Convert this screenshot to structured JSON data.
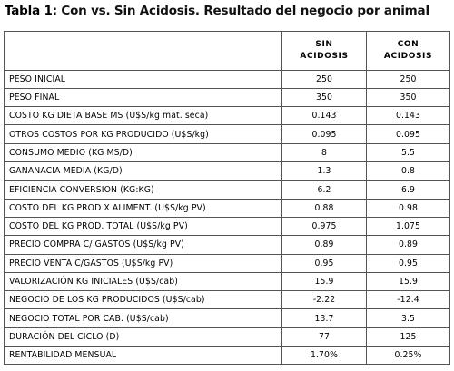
{
  "title": {
    "label": "Tabla 1:",
    "text": "Con vs. Sin Acidosis. Resultado del negocio por animal"
  },
  "table": {
    "headers": {
      "sin_line1": "SIN",
      "sin_line2": "ACIDOSIS",
      "con_line1": "CON",
      "con_line2": "ACIDOSIS"
    },
    "rows": [
      {
        "label": "PESO INICIAL",
        "sin": "250",
        "con": "250"
      },
      {
        "label": "PESO FINAL",
        "sin": "350",
        "con": "350"
      },
      {
        "label": "COSTO KG DIETA BASE MS (U$S/kg  mat. seca)",
        "sin": "0.143",
        "con": "0.143"
      },
      {
        "label": "OTROS COSTOS POR KG PRODUCIDO (U$S/kg)",
        "sin": "0.095",
        "con": "0.095"
      },
      {
        "label": "CONSUMO MEDIO (KG MS/D)",
        "sin": "8",
        "con": "5.5"
      },
      {
        "label": "GANANACIA MEDIA (KG/D)",
        "sin": "1.3",
        "con": "0.8"
      },
      {
        "label": "EFICIENCIA CONVERSION (KG:KG)",
        "sin": "6.2",
        "con": "6.9"
      },
      {
        "label": "COSTO DEL KG PROD X ALIMENT. (U$S/kg PV)",
        "sin": "0.88",
        "con": "0.98"
      },
      {
        "label": "COSTO DEL KG PROD. TOTAL (U$S/kg PV)",
        "sin": "0.975",
        "con": "1.075"
      },
      {
        "label": "PRECIO COMPRA C/ GASTOS (U$S/kg PV)",
        "sin": "0.89",
        "con": "0.89"
      },
      {
        "label": "PRECIO VENTA C/GASTOS (U$S/kg PV)",
        "sin": "0.95",
        "con": "0.95"
      },
      {
        "label": "VALORIZACIÓN KG INICIALES (U$S/cab)",
        "sin": "15.9",
        "con": "15.9"
      },
      {
        "label": "NEGOCIO DE LOS KG PRODUCIDOS (U$S/cab)",
        "sin": "-2.22",
        "con": "-12.4"
      },
      {
        "label": "NEGOCIO TOTAL POR CAB. (U$S/cab)",
        "sin": "13.7",
        "con": "3.5"
      },
      {
        "label": "DURACIÓN DEL CICLO (D)",
        "sin": "77",
        "con": "125"
      },
      {
        "label": "RENTABILIDAD MENSUAL",
        "sin": "1.70%",
        "con": "0.25%"
      }
    ]
  }
}
